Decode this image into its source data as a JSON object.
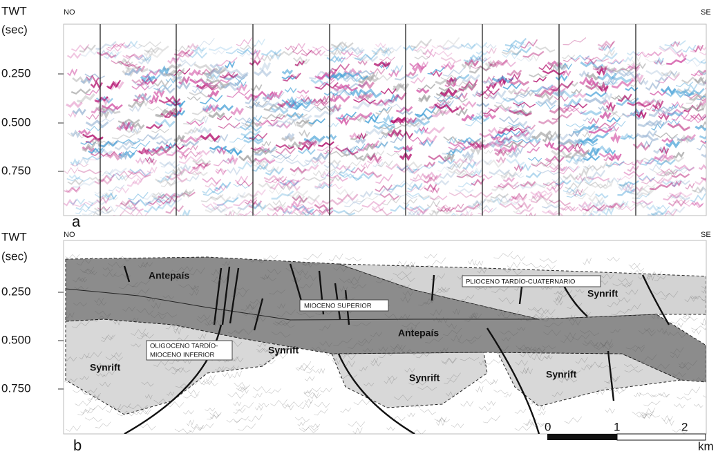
{
  "panels": [
    {
      "label": "a",
      "axis_title": [
        "TWT",
        "(sec)"
      ],
      "left": "NO",
      "right": "SE",
      "ticks": [
        "0.250",
        "0.500",
        "0.750"
      ]
    },
    {
      "label": "b",
      "axis_title": [
        "TWT",
        "(sec)"
      ],
      "left": "NO",
      "right": "SE",
      "ticks": [
        "0.250",
        "0.500",
        "0.750"
      ],
      "units": [
        "Antepaís",
        "MIOCENO SUPERIOR",
        "PLIOCENO TARDÍO-CUATERNARIO",
        "Synrift",
        "Antepaís",
        "OLIGOCENO TARDÍO-",
        "MIOCENO INFERIOR",
        "Synrift",
        "Synrift",
        "Synrift",
        "Synrift"
      ]
    }
  ],
  "scale_bar": {
    "labels": [
      "0",
      "1",
      "2"
    ],
    "unit": "km"
  }
}
